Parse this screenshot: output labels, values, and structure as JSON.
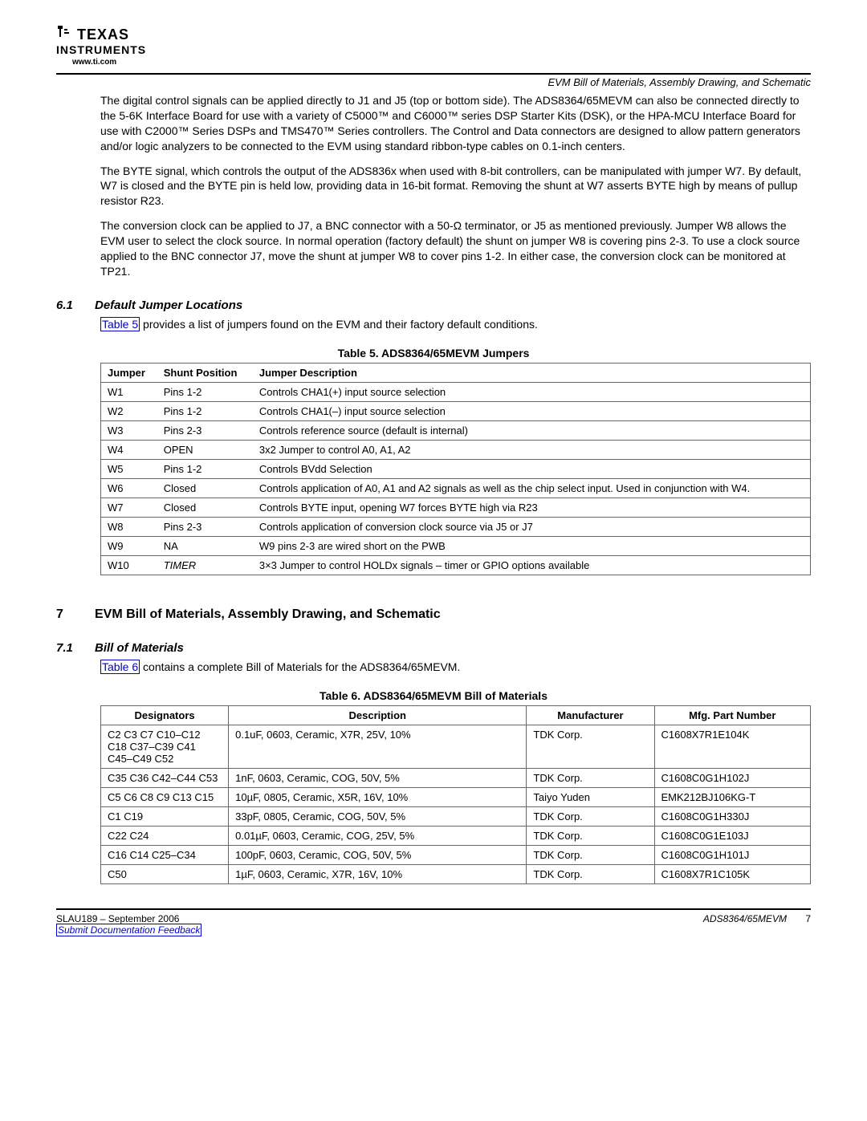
{
  "header": {
    "logo_line1": "TEXAS",
    "logo_line2": "INSTRUMENTS",
    "url": "www.ti.com",
    "section_bar": "EVM Bill of Materials, Assembly Drawing, and Schematic"
  },
  "para1": "The digital control signals can be applied directly to J1 and J5 (top or bottom side). The ADS8364/65MEVM can also be connected directly to the 5-6K Interface Board for use with a variety of C5000™ and C6000™ series DSP Starter Kits (DSK), or the HPA-MCU Interface Board for use with C2000™ Series DSPs and TMS470™ Series controllers. The Control and Data connectors are designed to allow pattern generators and/or logic analyzers to be connected to the EVM using standard ribbon-type cables on 0.1-inch centers.",
  "para2": "The BYTE signal, which controls the output of the ADS836x when used with 8-bit controllers, can be manipulated with jumper W7. By default, W7 is closed and the BYTE pin is held low, providing data in 16-bit format. Removing the shunt at W7 asserts BYTE high by means of pullup resistor R23.",
  "para3": "The conversion clock can be applied to J7, a BNC connector with a 50-Ω terminator, or J5 as mentioned previously. Jumper W8 allows the EVM user to select the clock source. In normal operation (factory default) the shunt on jumper W8 is covering pins 2-3. To use a clock source applied to the BNC connector J7, move the shunt at jumper W8 to cover pins 1-2. In either case, the conversion clock can be monitored at TP21.",
  "sec61": {
    "num": "6.1",
    "title": "Default Jumper Locations"
  },
  "sec61_text_pre": "",
  "sec61_link": "Table 5",
  "sec61_text_post": " provides a list of jumpers found on the EVM and their factory default conditions.",
  "table5": {
    "caption": "Table 5. ADS8364/65MEVM Jumpers",
    "headers": [
      "Jumper",
      "Shunt Position",
      "Jumper Description"
    ],
    "rows": [
      [
        "W1",
        "Pins 1-2",
        "Controls CHA1(+) input source selection"
      ],
      [
        "W2",
        "Pins 1-2",
        "Controls CHA1(–) input source selection"
      ],
      [
        "W3",
        "Pins 2-3",
        "Controls reference source (default is internal)"
      ],
      [
        "W4",
        "OPEN",
        "3x2 Jumper to control A0, A1, A2"
      ],
      [
        "W5",
        "Pins 1-2",
        "Controls BVdd Selection"
      ],
      [
        "W6",
        "Closed",
        "Controls application of A0, A1 and A2 signals as well as the chip select input. Used in conjunction with W4."
      ],
      [
        "W7",
        "Closed",
        "Controls BYTE input, opening W7 forces BYTE high via R23"
      ],
      [
        "W8",
        "Pins 2-3",
        "Controls application of conversion clock source via J5 or J7"
      ],
      [
        "W9",
        "NA",
        "W9 pins 2-3 are wired short on the PWB"
      ],
      [
        "W10",
        "TIMER",
        "3×3 Jumper to control HOLDx signals – timer or GPIO options available"
      ]
    ],
    "italic_col1_row": 9
  },
  "sec7": {
    "num": "7",
    "title": "EVM Bill of Materials, Assembly Drawing, and Schematic"
  },
  "sec71": {
    "num": "7.1",
    "title": "Bill of Materials"
  },
  "sec71_link": "Table 6",
  "sec71_text_post": " contains a complete Bill of Materials for the ADS8364/65MEVM.",
  "table6": {
    "caption": "Table 6. ADS8364/65MEVM Bill of Materials",
    "headers": [
      "Designators",
      "Description",
      "Manufacturer",
      "Mfg. Part Number"
    ],
    "rows": [
      [
        "C2 C3 C7 C10–C12 C18 C37–C39 C41 C45–C49 C52",
        "0.1uF, 0603, Ceramic, X7R, 25V, 10%",
        "TDK Corp.",
        "C1608X7R1E104K"
      ],
      [
        "C35 C36 C42–C44 C53",
        "1nF, 0603, Ceramic, COG, 50V, 5%",
        "TDK Corp.",
        "C1608C0G1H102J"
      ],
      [
        "C5 C6 C8 C9 C13 C15",
        "10µF, 0805, Ceramic, X5R, 16V, 10%",
        "Taiyo Yuden",
        "EMK212BJ106KG-T"
      ],
      [
        "C1 C19",
        "33pF, 0805, Ceramic, COG, 50V, 5%",
        "TDK Corp.",
        "C1608C0G1H330J"
      ],
      [
        "C22 C24",
        "0.01µF, 0603, Ceramic, COG, 25V, 5%",
        "TDK Corp.",
        "C1608C0G1E103J"
      ],
      [
        "C16 C14 C25–C34",
        "100pF, 0603, Ceramic, COG, 50V, 5%",
        "TDK Corp.",
        "C1608C0G1H101J"
      ],
      [
        "C50",
        "1µF, 0603, Ceramic, X7R, 16V, 10%",
        "TDK Corp.",
        "C1608X7R1C105K"
      ]
    ],
    "col_widths": [
      "18%",
      "42%",
      "18%",
      "22%"
    ]
  },
  "footer": {
    "left": "SLAU189 – September 2006",
    "right_title": "ADS8364/65MEVM",
    "page": "7",
    "feedback": "Submit Documentation Feedback"
  }
}
